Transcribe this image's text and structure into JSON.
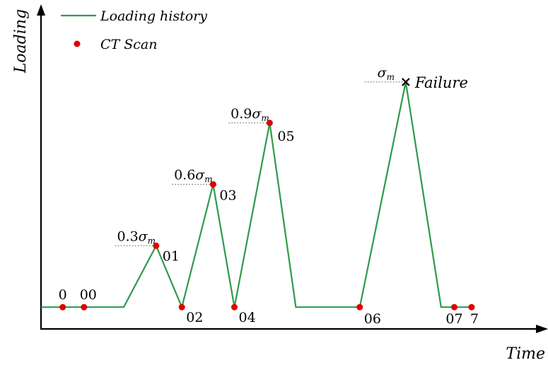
{
  "chart_data": {
    "type": "line",
    "xlabel": "Time",
    "ylabel": "Loading",
    "grid": false,
    "legend": {
      "position": "top-left",
      "entries": [
        {
          "label": "Loading history",
          "marker": "line",
          "color": "#2e9a4c"
        },
        {
          "label": "CT Scan",
          "marker": "dot",
          "color": "#e00000"
        }
      ]
    },
    "series": [
      {
        "name": "Loading history",
        "color": "#2e9a4c",
        "x": [
          0,
          1.7,
          2.25,
          3.13,
          3.83,
          4.68,
          5.26,
          6.22,
          6.93,
          7.96,
          8.67,
          9.92,
          10.88,
          10.88,
          11.77
        ],
        "y": [
          0,
          0,
          0,
          0.3,
          0,
          0.6,
          0,
          0.9,
          0,
          0,
          0,
          1.1,
          0,
          0,
          0
        ]
      }
    ],
    "ct_scans": {
      "color": "#e00000",
      "points": [
        {
          "label": "0",
          "x": 0.59,
          "y": 0
        },
        {
          "label": "00",
          "x": 1.17,
          "y": 0
        },
        {
          "label": "01",
          "x": 3.13,
          "y": 0.3
        },
        {
          "label": "02",
          "x": 3.83,
          "y": 0
        },
        {
          "label": "03",
          "x": 4.68,
          "y": 0.6
        },
        {
          "label": "04",
          "x": 5.26,
          "y": 0
        },
        {
          "label": "05",
          "x": 6.22,
          "y": 0.9
        },
        {
          "label": "06",
          "x": 8.67,
          "y": 0
        },
        {
          "label": "07",
          "x": 11.24,
          "y": 0
        },
        {
          "label": "7",
          "x": 11.71,
          "y": 0
        }
      ]
    },
    "levels": [
      {
        "prefix": "0.3",
        "y": 0.3,
        "x": 3.13
      },
      {
        "prefix": "0.6",
        "y": 0.6,
        "x": 4.68
      },
      {
        "prefix": "0.9",
        "y": 0.9,
        "x": 6.22
      },
      {
        "prefix": "",
        "y": 1.1,
        "x": 9.92
      }
    ],
    "level_symbol": "σ",
    "level_subscript": "m",
    "failure": {
      "label": "Failure",
      "x": 9.92,
      "y": 1.1
    },
    "xlim": [
      0,
      13.5
    ],
    "ylim": [
      -0.11,
      1.48
    ]
  }
}
